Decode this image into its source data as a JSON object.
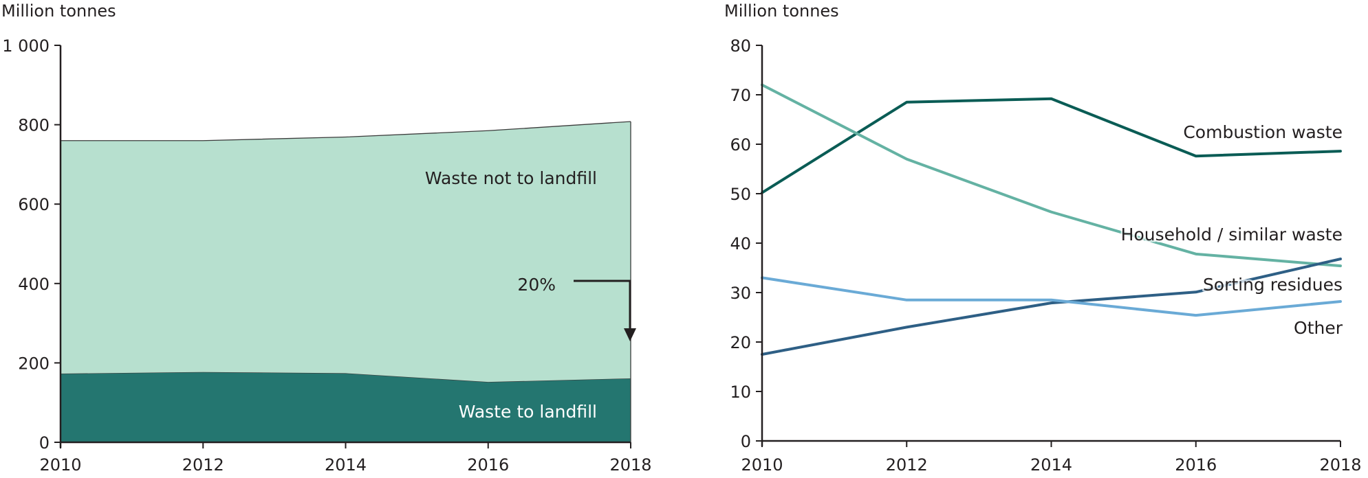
{
  "chart_data": [
    {
      "type": "area",
      "stacked": true,
      "title": "",
      "ylabel": "Million tonnes",
      "xlabel": "",
      "x": [
        2010,
        2012,
        2014,
        2016,
        2018
      ],
      "xticks": [
        "2010",
        "2012",
        "2014",
        "2016",
        "2018"
      ],
      "ylim": [
        0,
        1000
      ],
      "yticks": [
        0,
        200,
        400,
        600,
        800,
        1000
      ],
      "ytick_labels": [
        "0",
        "200",
        "400",
        "600",
        "800",
        "1 000"
      ],
      "grid": false,
      "series": [
        {
          "name": "Waste to landfill",
          "values": [
            173,
            177,
            174,
            152,
            161
          ],
          "color": "#247670",
          "label_color": "#ffffff"
        },
        {
          "name": "Waste not to landfill",
          "values": [
            587,
            583,
            595,
            633,
            647
          ],
          "color": "#b7e0cf",
          "label_color": "#231f20"
        }
      ],
      "totals": [
        760,
        760,
        769,
        785,
        808
      ],
      "annotations": [
        {
          "text": "20%",
          "type": "arrow",
          "description": "Share of waste to landfill in 2018"
        }
      ]
    },
    {
      "type": "line",
      "title": "",
      "ylabel": "Million tonnes",
      "xlabel": "",
      "x": [
        2010,
        2012,
        2014,
        2016,
        2018
      ],
      "xticks": [
        "2010",
        "2012",
        "2014",
        "2016",
        "2018"
      ],
      "ylim": [
        0,
        80
      ],
      "yticks": [
        0,
        10,
        20,
        30,
        40,
        50,
        60,
        70,
        80
      ],
      "ytick_labels": [
        "0",
        "10",
        "20",
        "30",
        "40",
        "50",
        "60",
        "70",
        "80"
      ],
      "grid": false,
      "legend": "inline-right",
      "series": [
        {
          "name": "Combustion waste",
          "values": [
            50.2,
            68.5,
            69.2,
            57.6,
            58.6
          ],
          "color": "#0a5c55"
        },
        {
          "name": "Household / similar waste",
          "values": [
            72.0,
            57.0,
            46.3,
            37.8,
            35.4
          ],
          "color": "#64b2a3"
        },
        {
          "name": "Sorting residues",
          "values": [
            17.5,
            23.0,
            27.9,
            30.1,
            36.8
          ],
          "color": "#2e5f85"
        },
        {
          "name": "Other",
          "values": [
            33.0,
            28.5,
            28.5,
            25.4,
            28.2
          ],
          "color": "#6aaad6"
        }
      ]
    }
  ]
}
